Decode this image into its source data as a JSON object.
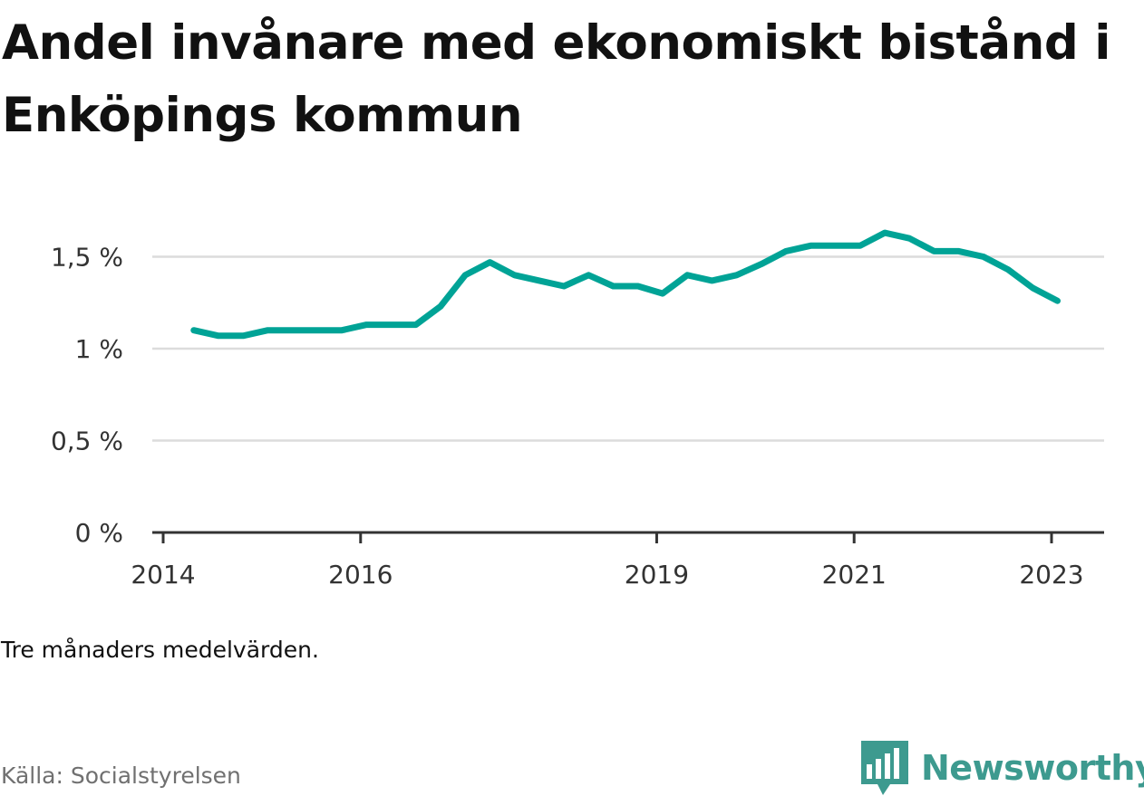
{
  "title": "Andel invånare med ekonomiskt bistånd i Enköpings kommun",
  "note": "Tre månaders medelvärden.",
  "source": "Källa: Socialstyrelsen",
  "brand": {
    "name": "Newsworthy",
    "icon": "newsworthy-logo-icon",
    "color": "#3d9a8f"
  },
  "chart_data": {
    "type": "line",
    "title": "Andel invånare med ekonomiskt bistånd i Enköpings kommun",
    "xlabel": "",
    "ylabel": "",
    "ylim": [
      0,
      1.65
    ],
    "y_ticks": [
      {
        "value": 0,
        "label": "0 %"
      },
      {
        "value": 0.5,
        "label": "0,5 %"
      },
      {
        "value": 1,
        "label": "1 %"
      },
      {
        "value": 1.5,
        "label": "1,5 %"
      }
    ],
    "x_ticks": [
      {
        "value": 2014.0,
        "label": "2014"
      },
      {
        "value": 2016.0,
        "label": "2016"
      },
      {
        "value": 2019.0,
        "label": "2019"
      },
      {
        "value": 2021.0,
        "label": "2021"
      },
      {
        "value": 2023.0,
        "label": "2023"
      }
    ],
    "grid": true,
    "line_color": "#00a396",
    "series": [
      {
        "x": [
          2014.31,
          2014.56,
          2014.81,
          2015.06,
          2015.31,
          2015.56,
          2015.81,
          2016.06,
          2016.31,
          2016.56,
          2016.81,
          2017.06,
          2017.31,
          2017.56,
          2017.81,
          2018.06,
          2018.31,
          2018.56,
          2018.81,
          2019.06,
          2019.31,
          2019.56,
          2019.81,
          2020.06,
          2020.31,
          2020.56,
          2020.81,
          2021.06,
          2021.31,
          2021.56,
          2021.81,
          2022.06,
          2022.31,
          2022.56,
          2022.81,
          2023.06
        ],
        "values": [
          1.1,
          1.07,
          1.07,
          1.1,
          1.1,
          1.1,
          1.1,
          1.13,
          1.13,
          1.13,
          1.23,
          1.4,
          1.47,
          1.4,
          1.37,
          1.34,
          1.4,
          1.34,
          1.34,
          1.3,
          1.4,
          1.37,
          1.4,
          1.46,
          1.53,
          1.56,
          1.56,
          1.56,
          1.63,
          1.6,
          1.53,
          1.53,
          1.5,
          1.43,
          1.33,
          1.26
        ]
      }
    ]
  }
}
